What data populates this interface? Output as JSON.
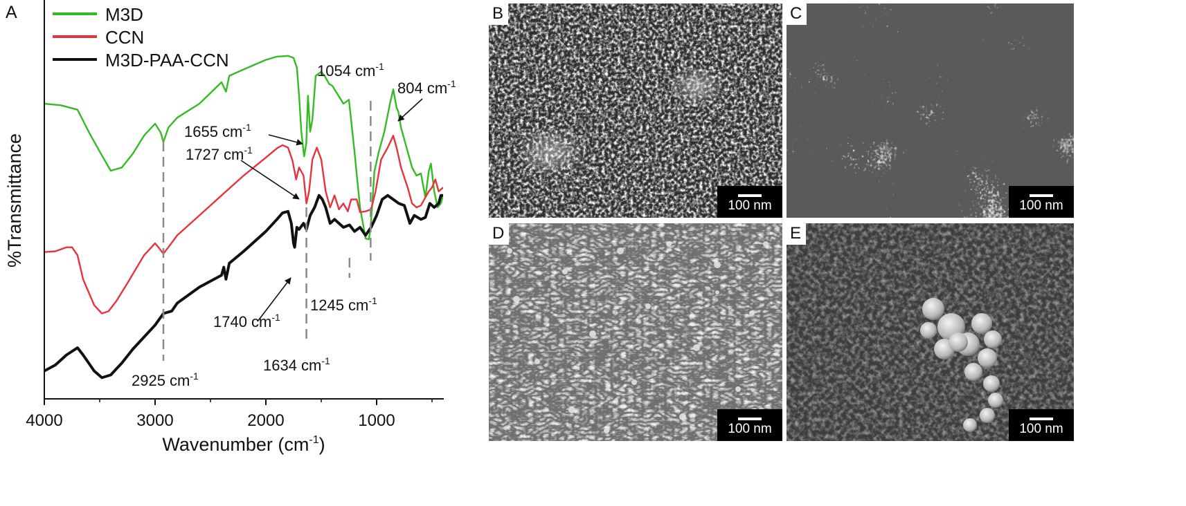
{
  "panel_a": {
    "label": "A",
    "chart_data": {
      "type": "line",
      "xlabel": "Wavenumber (cm",
      "xlabel_sup": "-1",
      "xlabel_end": ")",
      "ylabel": "%Transmittance",
      "xlim": [
        4000,
        400
      ],
      "ylim": [
        0,
        100
      ],
      "x_ticks": [
        4000,
        3000,
        2000,
        1000
      ],
      "legend_position": "top-left",
      "series": [
        {
          "name": "M3D",
          "color": "#33bb22",
          "points": [
            [
              4000,
              74
            ],
            [
              3850,
              73.6
            ],
            [
              3700,
              72.5
            ],
            [
              3600,
              67
            ],
            [
              3500,
              62
            ],
            [
              3400,
              57.2
            ],
            [
              3300,
              58
            ],
            [
              3200,
              61.5
            ],
            [
              3100,
              66
            ],
            [
              3000,
              69
            ],
            [
              2950,
              66.8
            ],
            [
              2925,
              64.4
            ],
            [
              2880,
              68
            ],
            [
              2800,
              70.5
            ],
            [
              2600,
              74
            ],
            [
              2400,
              79.4
            ],
            [
              2360,
              77
            ],
            [
              2330,
              81
            ],
            [
              2200,
              82.6
            ],
            [
              2000,
              85
            ],
            [
              1900,
              85.8
            ],
            [
              1800,
              86
            ],
            [
              1750,
              85.5
            ],
            [
              1720,
              83
            ],
            [
              1700,
              76
            ],
            [
              1680,
              67
            ],
            [
              1655,
              60.8
            ],
            [
              1635,
              64
            ],
            [
              1620,
              76
            ],
            [
              1600,
              67
            ],
            [
              1580,
              70
            ],
            [
              1550,
              81
            ],
            [
              1500,
              82
            ],
            [
              1470,
              81
            ],
            [
              1430,
              79
            ],
            [
              1400,
              78.5
            ],
            [
              1300,
              74
            ],
            [
              1250,
              75
            ],
            [
              1200,
              62
            ],
            [
              1150,
              48
            ],
            [
              1100,
              40.2
            ],
            [
              1070,
              40
            ],
            [
              1054,
              43
            ],
            [
              1020,
              57
            ],
            [
              980,
              62
            ],
            [
              930,
              67
            ],
            [
              880,
              74
            ],
            [
              850,
              77.6
            ],
            [
              820,
              73
            ],
            [
              804,
              72
            ],
            [
              780,
              68
            ],
            [
              740,
              64
            ],
            [
              680,
              58
            ],
            [
              640,
              56
            ],
            [
              600,
              56.5
            ],
            [
              560,
              50.5
            ],
            [
              530,
              57
            ],
            [
              510,
              59
            ],
            [
              480,
              52
            ],
            [
              450,
              48
            ],
            [
              420,
              49
            ],
            [
              400,
              51
            ]
          ]
        },
        {
          "name": "CCN",
          "color": "#e8323c",
          "points": [
            [
              4000,
              36.8
            ],
            [
              3900,
              37
            ],
            [
              3800,
              38
            ],
            [
              3750,
              38
            ],
            [
              3700,
              36
            ],
            [
              3650,
              30
            ],
            [
              3550,
              23.5
            ],
            [
              3480,
              21.4
            ],
            [
              3420,
              22
            ],
            [
              3350,
              24.5
            ],
            [
              3250,
              29
            ],
            [
              3100,
              36
            ],
            [
              3000,
              39
            ],
            [
              2970,
              38
            ],
            [
              2925,
              36.4
            ],
            [
              2880,
              38
            ],
            [
              2800,
              41
            ],
            [
              2600,
              46
            ],
            [
              2400,
              51
            ],
            [
              2200,
              56
            ],
            [
              2000,
              60.5
            ],
            [
              1900,
              62.8
            ],
            [
              1850,
              63.6
            ],
            [
              1800,
              63
            ],
            [
              1760,
              59.8
            ],
            [
              1727,
              55
            ],
            [
              1700,
              58
            ],
            [
              1660,
              56
            ],
            [
              1634,
              49
            ],
            [
              1610,
              52
            ],
            [
              1580,
              60
            ],
            [
              1540,
              63
            ],
            [
              1500,
              60
            ],
            [
              1460,
              52
            ],
            [
              1420,
              48
            ],
            [
              1380,
              51
            ],
            [
              1340,
              47.5
            ],
            [
              1300,
              49
            ],
            [
              1260,
              47
            ],
            [
              1230,
              50
            ],
            [
              1180,
              50
            ],
            [
              1150,
              46.8
            ],
            [
              1100,
              47
            ],
            [
              1050,
              47.5
            ],
            [
              1010,
              52
            ],
            [
              960,
              60
            ],
            [
              900,
              63
            ],
            [
              850,
              66
            ],
            [
              820,
              63
            ],
            [
              780,
              58
            ],
            [
              720,
              53
            ],
            [
              680,
              49
            ],
            [
              640,
              48
            ],
            [
              600,
              48.5
            ],
            [
              560,
              50.5
            ],
            [
              530,
              52
            ],
            [
              500,
              53
            ],
            [
              470,
              55
            ],
            [
              440,
              52
            ],
            [
              400,
              53
            ]
          ]
        },
        {
          "name": "M3D-PAA-CCN",
          "color": "#111111",
          "points": [
            [
              4000,
              7
            ],
            [
              3900,
              8.5
            ],
            [
              3800,
              11
            ],
            [
              3700,
              12.8
            ],
            [
              3650,
              11
            ],
            [
              3550,
              7
            ],
            [
              3480,
              5.3
            ],
            [
              3400,
              6
            ],
            [
              3300,
              9
            ],
            [
              3200,
              12.5
            ],
            [
              3100,
              15.5
            ],
            [
              3000,
              18.5
            ],
            [
              2925,
              21.4
            ],
            [
              2850,
              22
            ],
            [
              2800,
              24
            ],
            [
              2600,
              28
            ],
            [
              2400,
              31
            ],
            [
              2380,
              33
            ],
            [
              2360,
              30
            ],
            [
              2330,
              34
            ],
            [
              2200,
              37
            ],
            [
              2000,
              42
            ],
            [
              1900,
              45
            ],
            [
              1850,
              46.6
            ],
            [
              1800,
              47
            ],
            [
              1770,
              44
            ],
            [
              1750,
              39
            ],
            [
              1740,
              38
            ],
            [
              1720,
              43
            ],
            [
              1700,
              42.5
            ],
            [
              1660,
              44
            ],
            [
              1634,
              42.5
            ],
            [
              1600,
              46
            ],
            [
              1560,
              48
            ],
            [
              1520,
              51
            ],
            [
              1490,
              50
            ],
            [
              1460,
              48
            ],
            [
              1420,
              44
            ],
            [
              1380,
              45
            ],
            [
              1300,
              43
            ],
            [
              1245,
              43.6
            ],
            [
              1200,
              42
            ],
            [
              1150,
              43
            ],
            [
              1100,
              41
            ],
            [
              1050,
              43
            ],
            [
              1000,
              46
            ],
            [
              950,
              50
            ],
            [
              900,
              51
            ],
            [
              850,
              50
            ],
            [
              800,
              49
            ],
            [
              750,
              48.5
            ],
            [
              700,
              44
            ],
            [
              660,
              46
            ],
            [
              600,
              45
            ],
            [
              560,
              45.5
            ],
            [
              520,
              49
            ],
            [
              480,
              48
            ],
            [
              440,
              49
            ],
            [
              420,
              51
            ],
            [
              400,
              51
            ]
          ]
        }
      ],
      "annotations": [
        {
          "text": "1054 cm",
          "sup": "-1"
        },
        {
          "text": "804 cm",
          "sup": "-1"
        },
        {
          "text": "1655 cm",
          "sup": "-1"
        },
        {
          "text": "1727 cm",
          "sup": "-1"
        },
        {
          "text": "1740 cm",
          "sup": "-1"
        },
        {
          "text": "1245 cm",
          "sup": "-1"
        },
        {
          "text": "2925 cm",
          "sup": "-1"
        },
        {
          "text": "1634 cm",
          "sup": "-1"
        }
      ]
    }
  },
  "sem_panels": [
    {
      "label": "B",
      "scale": "100 nm",
      "texture": "dense-granular"
    },
    {
      "label": "C",
      "scale": "100 nm",
      "texture": "particle-aggregates"
    },
    {
      "label": "D",
      "scale": "100 nm",
      "texture": "fibrous-network"
    },
    {
      "label": "E",
      "scale": "100 nm",
      "texture": "smooth-with-particle-cluster"
    }
  ],
  "colors": {
    "m3d": "#33bb22",
    "ccn": "#e8323c",
    "hybrid": "#111111",
    "dash": "#8a8a8a"
  }
}
